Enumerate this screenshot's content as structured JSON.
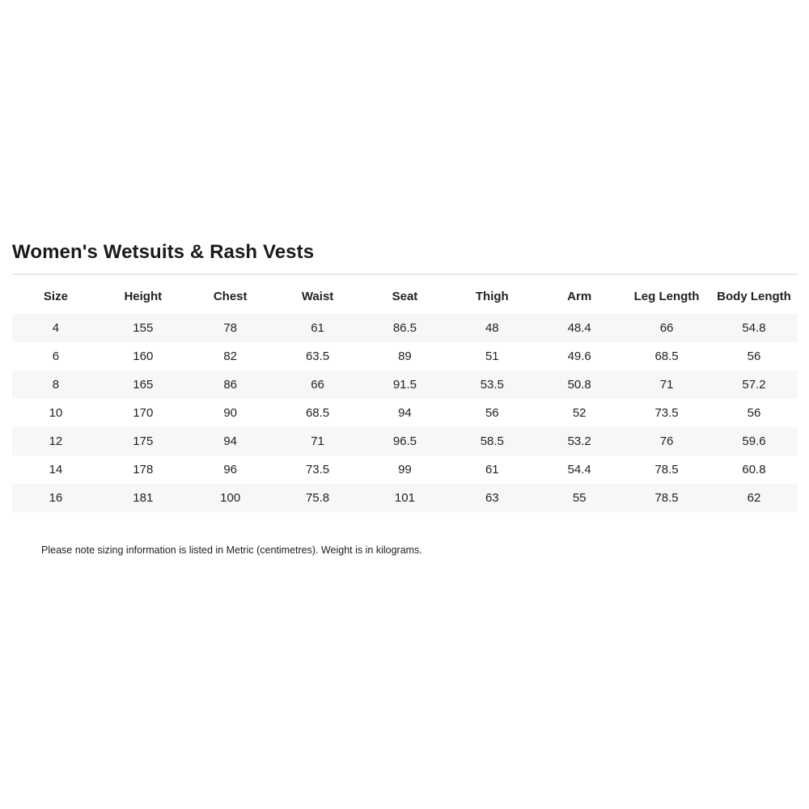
{
  "title": "Women's Wetsuits & Rash Vests",
  "table": {
    "headers": [
      "Size",
      "Height",
      "Chest",
      "Waist",
      "Seat",
      "Thigh",
      "Arm",
      "Leg Length",
      "Body Length"
    ],
    "rows": [
      [
        "4",
        "155",
        "78",
        "61",
        "86.5",
        "48",
        "48.4",
        "66",
        "54.8"
      ],
      [
        "6",
        "160",
        "82",
        "63.5",
        "89",
        "51",
        "49.6",
        "68.5",
        "56"
      ],
      [
        "8",
        "165",
        "86",
        "66",
        "91.5",
        "53.5",
        "50.8",
        "71",
        "57.2"
      ],
      [
        "10",
        "170",
        "90",
        "68.5",
        "94",
        "56",
        "52",
        "73.5",
        "56"
      ],
      [
        "12",
        "175",
        "94",
        "71",
        "96.5",
        "58.5",
        "53.2",
        "76",
        "59.6"
      ],
      [
        "14",
        "178",
        "96",
        "73.5",
        "99",
        "61",
        "54.4",
        "78.5",
        "60.8"
      ],
      [
        "16",
        "181",
        "100",
        "75.8",
        "101",
        "63",
        "55",
        "78.5",
        "62"
      ]
    ]
  },
  "note": "Please note sizing information is listed in Metric (centimetres). Weight is in kilograms.",
  "colors": {
    "row_stripe": "#f7f7f7",
    "divider": "#eaeaea",
    "text": "#222222"
  }
}
